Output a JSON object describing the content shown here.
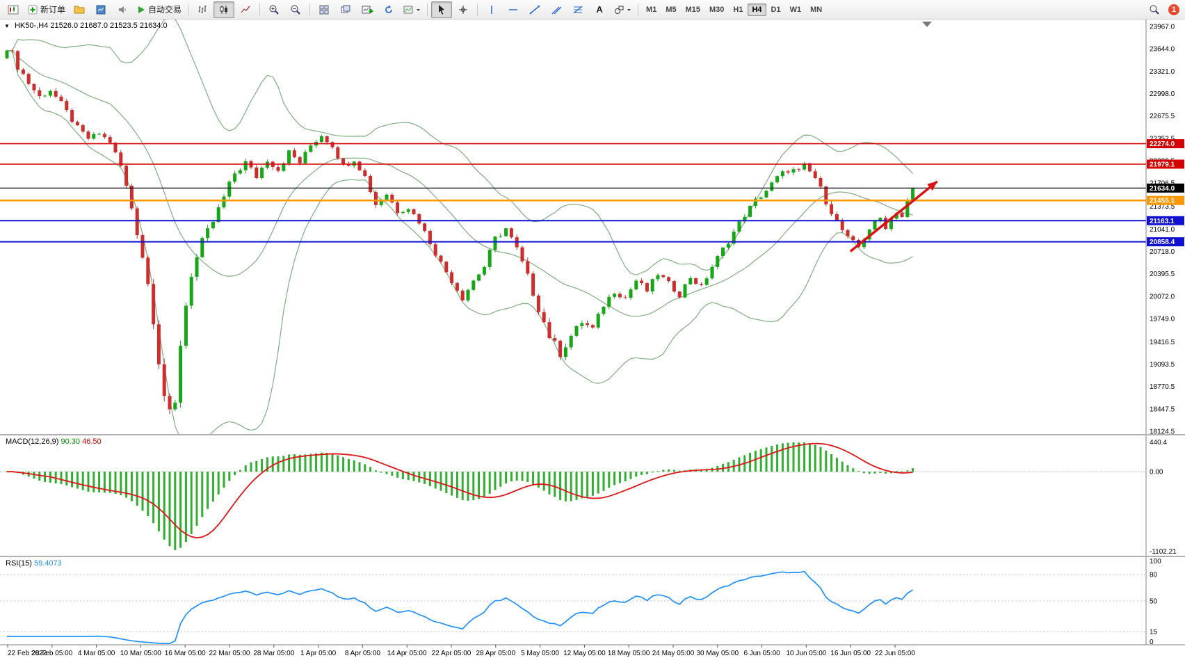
{
  "toolbar": {
    "new_order_label": "新订单",
    "autotrading_label": "自动交易",
    "timeframes": [
      "M1",
      "M5",
      "M15",
      "M30",
      "H1",
      "H4",
      "D1",
      "W1",
      "MN"
    ],
    "active_timeframe": "H4",
    "text_tool_label": "A",
    "notification_count": "1"
  },
  "symbol_header": {
    "symbol": "HK50-,H4",
    "open": "21526.0",
    "high": "21687.0",
    "low": "21523.5",
    "close": "21634.0"
  },
  "chart_data": {
    "type": "candlestick",
    "symbol": "HK50",
    "timeframe": "H4",
    "current_price": "21634.0",
    "price_axis": {
      "labels": [
        "23967.0",
        "23644.0",
        "23321.0",
        "22998.0",
        "22675.5",
        "22352.5",
        "22029.5",
        "21706.5",
        "21373.5",
        "21041.0",
        "20718.0",
        "20395.5",
        "20072.0",
        "19749.0",
        "19416.5",
        "19093.5",
        "18770.5",
        "18447.5",
        "18124.5"
      ],
      "range_top": 24067,
      "range_bottom": 18074
    },
    "horizontal_lines": [
      {
        "price": 22274.0,
        "badge": "22274.0",
        "color": "#d40000",
        "width": 1.6
      },
      {
        "price": 21979.1,
        "badge": "21979.1",
        "color": "#d40000",
        "width": 1.6
      },
      {
        "price": 21634.0,
        "badge": "21634.0",
        "color": "#000000",
        "width": 1.2
      },
      {
        "price": 21455.1,
        "badge": "21455.1",
        "color": "#ff9800",
        "width": 2.6
      },
      {
        "price": 21163.1,
        "badge": "21163.1",
        "color": "#1010d0",
        "width": 2
      },
      {
        "price": 20858.4,
        "badge": "20858.4",
        "color": "#1010d0",
        "width": 2
      }
    ],
    "candles": {
      "count": 168,
      "up_color": "#17a617",
      "down_color": "#cc2e2e",
      "anchors": [
        [
          0,
          23700,
          150
        ],
        [
          2,
          23400,
          115
        ],
        [
          4,
          23150,
          100
        ],
        [
          6,
          22950,
          90
        ],
        [
          8,
          23050,
          85
        ],
        [
          10,
          22850,
          80
        ],
        [
          13,
          22500,
          75
        ],
        [
          15,
          22350,
          62
        ],
        [
          17,
          22420,
          56
        ],
        [
          19,
          22300,
          65
        ],
        [
          21,
          21950,
          95
        ],
        [
          23,
          21350,
          110
        ],
        [
          25,
          20650,
          115
        ],
        [
          26,
          20250,
          130
        ],
        [
          27,
          19750,
          150
        ],
        [
          28,
          19150,
          160
        ],
        [
          29,
          18650,
          170
        ],
        [
          30,
          18350,
          170
        ],
        [
          31,
          18500,
          155
        ],
        [
          32,
          19400,
          180
        ],
        [
          33,
          19950,
          150
        ],
        [
          34,
          20400,
          140
        ],
        [
          36,
          20850,
          120
        ],
        [
          38,
          21150,
          110
        ],
        [
          40,
          21500,
          100
        ],
        [
          42,
          21850,
          115
        ],
        [
          44,
          22000,
          100
        ],
        [
          46,
          21800,
          95
        ],
        [
          48,
          22050,
          90
        ],
        [
          50,
          21900,
          85
        ],
        [
          52,
          22150,
          80
        ],
        [
          54,
          22000,
          76
        ],
        [
          56,
          22250,
          76
        ],
        [
          58,
          22400,
          85
        ],
        [
          60,
          22250,
          75
        ],
        [
          62,
          21950,
          85
        ],
        [
          64,
          22050,
          75
        ],
        [
          66,
          21800,
          75
        ],
        [
          68,
          21400,
          90
        ],
        [
          70,
          21550,
          75
        ],
        [
          72,
          21300,
          70
        ],
        [
          74,
          21350,
          65
        ],
        [
          76,
          21150,
          70
        ],
        [
          78,
          20850,
          80
        ],
        [
          80,
          20550,
          85
        ],
        [
          82,
          20300,
          85
        ],
        [
          84,
          20050,
          85
        ],
        [
          86,
          20300,
          80
        ],
        [
          88,
          20500,
          90
        ],
        [
          90,
          20900,
          95
        ],
        [
          92,
          21050,
          85
        ],
        [
          94,
          20750,
          95
        ],
        [
          96,
          20350,
          105
        ],
        [
          98,
          19900,
          115
        ],
        [
          100,
          19500,
          120
        ],
        [
          102,
          19250,
          115
        ],
        [
          104,
          19500,
          100
        ],
        [
          106,
          19700,
          95
        ],
        [
          108,
          19600,
          90
        ],
        [
          110,
          19950,
          90
        ],
        [
          112,
          20150,
          85
        ],
        [
          114,
          20050,
          80
        ],
        [
          116,
          20300,
          80
        ],
        [
          118,
          20150,
          80
        ],
        [
          120,
          20400,
          85
        ],
        [
          122,
          20250,
          80
        ],
        [
          124,
          20100,
          80
        ],
        [
          126,
          20350,
          78
        ],
        [
          128,
          20200,
          75
        ],
        [
          130,
          20500,
          80
        ],
        [
          132,
          20750,
          82
        ],
        [
          134,
          21000,
          82
        ],
        [
          136,
          21250,
          80
        ],
        [
          138,
          21450,
          80
        ],
        [
          140,
          21600,
          82
        ],
        [
          142,
          21780,
          88
        ],
        [
          144,
          21900,
          90
        ],
        [
          146,
          21870,
          88
        ],
        [
          147,
          21950,
          85
        ],
        [
          149,
          21780,
          90
        ],
        [
          151,
          21450,
          92
        ],
        [
          153,
          21150,
          92
        ],
        [
          155,
          20900,
          92
        ],
        [
          157,
          20780,
          90
        ],
        [
          159,
          21050,
          82
        ],
        [
          161,
          21200,
          80
        ],
        [
          162,
          21080,
          78
        ],
        [
          164,
          21300,
          72
        ],
        [
          165,
          21220,
          70
        ],
        [
          166,
          21450,
          65
        ],
        [
          167,
          21634,
          60
        ]
      ]
    },
    "indicators": {
      "bollinger": {
        "period": 20,
        "deviation": 2,
        "color": "#7fae7f"
      },
      "macd": {
        "title": "MACD(12,26,9)",
        "value_main": "90.30",
        "value_signal": "46.50",
        "histogram_color": "#2fae2f",
        "signal_color": "#e01515",
        "scale_labels": [
          "440.4",
          "0.00",
          "-1102.21"
        ]
      },
      "rsi": {
        "title": "RSI(15)",
        "value": "59.4073",
        "line_color": "#1e90ff",
        "levels": [
          80,
          50,
          15
        ],
        "scale_labels": [
          "100",
          "80",
          "50",
          "15",
          "0"
        ]
      }
    },
    "time_axis": [
      "22 Feb 2022",
      "28 Feb 05:00",
      "4 Mar 05:00",
      "10 Mar 05:00",
      "16 Mar 05:00",
      "22 Mar 05:00",
      "28 Mar 05:00",
      "1 Apr 05:00",
      "8 Apr 05:00",
      "14 Apr 05:00",
      "22 Apr 05:00",
      "28 Apr 05:00",
      "5 May 05:00",
      "12 May 05:00",
      "18 May 05:00",
      "24 May 05:00",
      "30 May 05:00",
      "6 Jun 05:00",
      "10 Jun 05:00",
      "16 Jun 05:00",
      "22 Jun 05:00"
    ],
    "trend_arrow": {
      "from_index": 155.5,
      "from_price": 20720,
      "to_index": 171.5,
      "to_price": 21730,
      "color": "#dd1111"
    }
  }
}
